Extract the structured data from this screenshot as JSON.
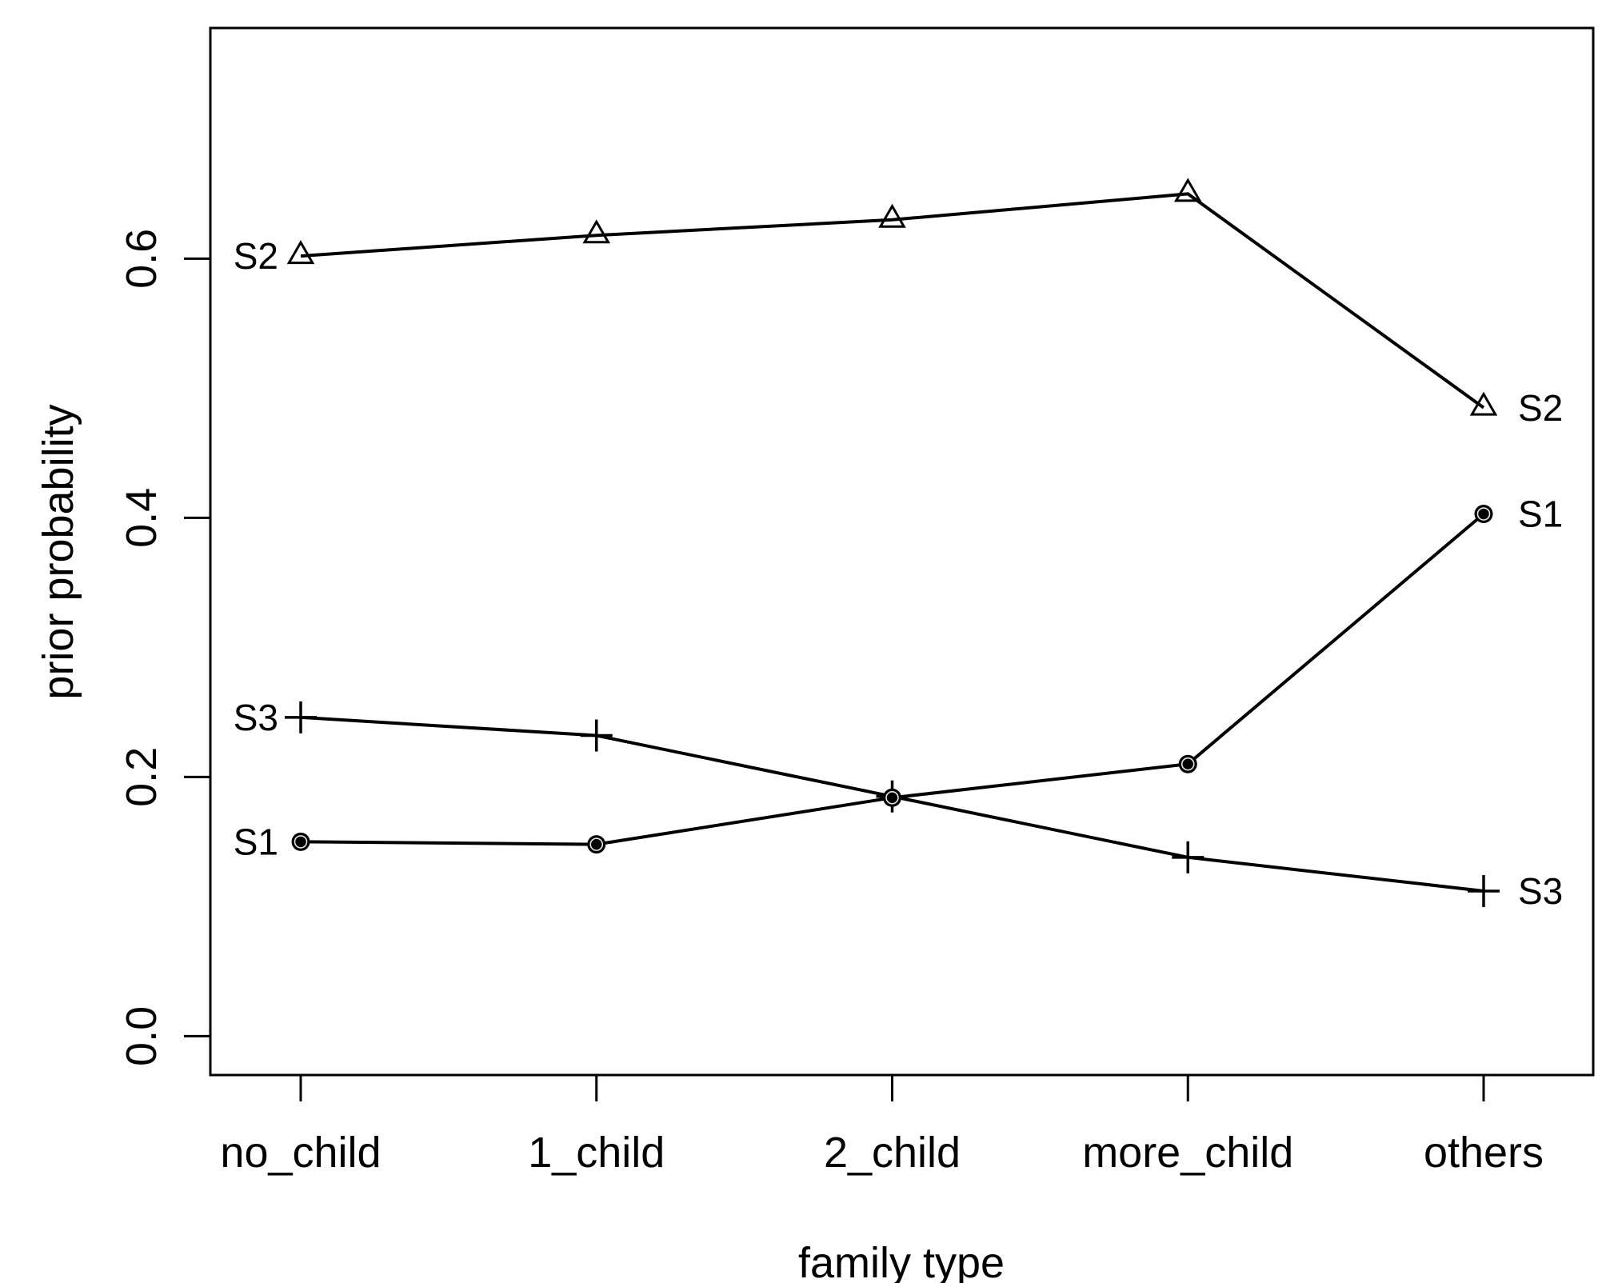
{
  "figure": {
    "background": "#ffffff",
    "axis_color": "#000000",
    "series_color": "#000000"
  },
  "chart_data": {
    "type": "line",
    "title": "",
    "xlabel": "family type",
    "ylabel": "prior probability",
    "categories": [
      "no_child",
      "1_child",
      "2_child",
      "more_child",
      "others"
    ],
    "ytick_labels": [
      "0.0",
      "0.2",
      "0.4",
      "0.6"
    ],
    "ytick_values": [
      0.0,
      0.2,
      0.4,
      0.6
    ],
    "ylim": [
      -0.03,
      0.778
    ],
    "grid": false,
    "legend_position": "line-end-labels-both-sides",
    "series": [
      {
        "name": "S2",
        "marker": "open-triangle",
        "values": [
          0.602,
          0.618,
          0.63,
          0.65,
          0.485
        ],
        "left_label": "S2",
        "right_label": "S2"
      },
      {
        "name": "S3",
        "marker": "plus",
        "values": [
          0.246,
          0.232,
          0.185,
          0.138,
          0.112
        ],
        "left_label": "S3",
        "right_label": "S3"
      },
      {
        "name": "S1",
        "marker": "filled-circle",
        "values": [
          0.15,
          0.148,
          0.184,
          0.21,
          0.403
        ],
        "left_label": "S1",
        "right_label": "S1"
      }
    ]
  }
}
